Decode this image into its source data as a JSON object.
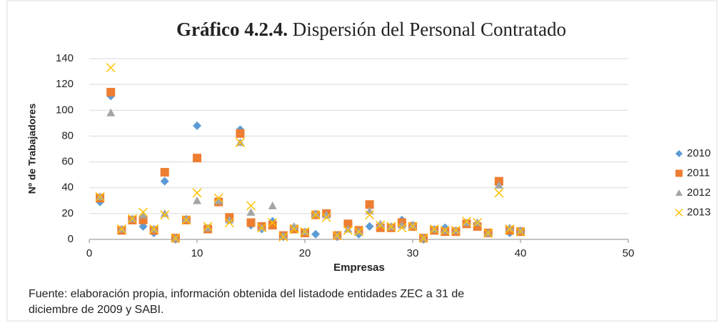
{
  "chart_data": {
    "type": "scatter",
    "title_label": "Gráfico 4.2.4.",
    "title": "Dispersión del Personal Contratado",
    "x_label": "Empresas",
    "y_label": "Nº de Trabajadores",
    "note": [
      "Fuente: elaboración propia, información obtenida del listadode entidades ZEC a 31 de",
      "diciembre de 2009 y SABI."
    ],
    "x": [
      1,
      2,
      3,
      4,
      5,
      6,
      7,
      8,
      9,
      10,
      11,
      12,
      13,
      14,
      15,
      16,
      17,
      18,
      19,
      20,
      21,
      22,
      23,
      24,
      25,
      26,
      27,
      28,
      29,
      30,
      31,
      32,
      33,
      34,
      35,
      36,
      37,
      38,
      39,
      40
    ],
    "series": [
      {
        "name": "2010",
        "color": "#5b9bd5",
        "marker": "diamond",
        "values": [
          29,
          111,
          7,
          15,
          10,
          5,
          45,
          0,
          15,
          88,
          8,
          29,
          16,
          85,
          11,
          8,
          14,
          2,
          8,
          5,
          4,
          19,
          2,
          12,
          4,
          10,
          10,
          9,
          15,
          11,
          0,
          7,
          9,
          6,
          12,
          12,
          5,
          44,
          5,
          6
        ]
      },
      {
        "name": "2011",
        "color": "#ed7d31",
        "marker": "square",
        "values": [
          32,
          114,
          7,
          15,
          15,
          7,
          52,
          1,
          15,
          63,
          8,
          29,
          17,
          82,
          13,
          10,
          11,
          3,
          8,
          5,
          19,
          20,
          3,
          12,
          7,
          27,
          9,
          9,
          13,
          10,
          1,
          7,
          6,
          6,
          12,
          10,
          5,
          45,
          7,
          6
        ]
      },
      {
        "name": "2012",
        "color": "#a5a5a5",
        "marker": "triangle",
        "values": [
          33,
          98,
          8,
          16,
          19,
          8,
          20,
          1,
          16,
          30,
          9,
          30,
          15,
          75,
          21,
          9,
          26,
          3,
          10,
          6,
          20,
          19,
          3,
          8,
          6,
          22,
          12,
          10,
          11,
          11,
          1,
          8,
          7,
          7,
          13,
          13,
          5,
          42,
          9,
          7
        ]
      },
      {
        "name": "2013",
        "color": "#ffc000",
        "marker": "x",
        "values": [
          33,
          133,
          8,
          16,
          21,
          8,
          19,
          1,
          15,
          36,
          10,
          32,
          13,
          75,
          26,
          9,
          13,
          2,
          8,
          6,
          19,
          17,
          3,
          7,
          6,
          19,
          11,
          10,
          9,
          10,
          1,
          8,
          7,
          7,
          14,
          13,
          5,
          36,
          8,
          6
        ]
      }
    ],
    "xlim": [
      0,
      50
    ],
    "xticks": [
      0,
      10,
      20,
      30,
      40,
      50
    ],
    "ylim": [
      0,
      140
    ],
    "yticks": [
      0,
      20,
      40,
      60,
      80,
      100,
      120,
      140
    ],
    "grid": true,
    "legend": "right"
  }
}
